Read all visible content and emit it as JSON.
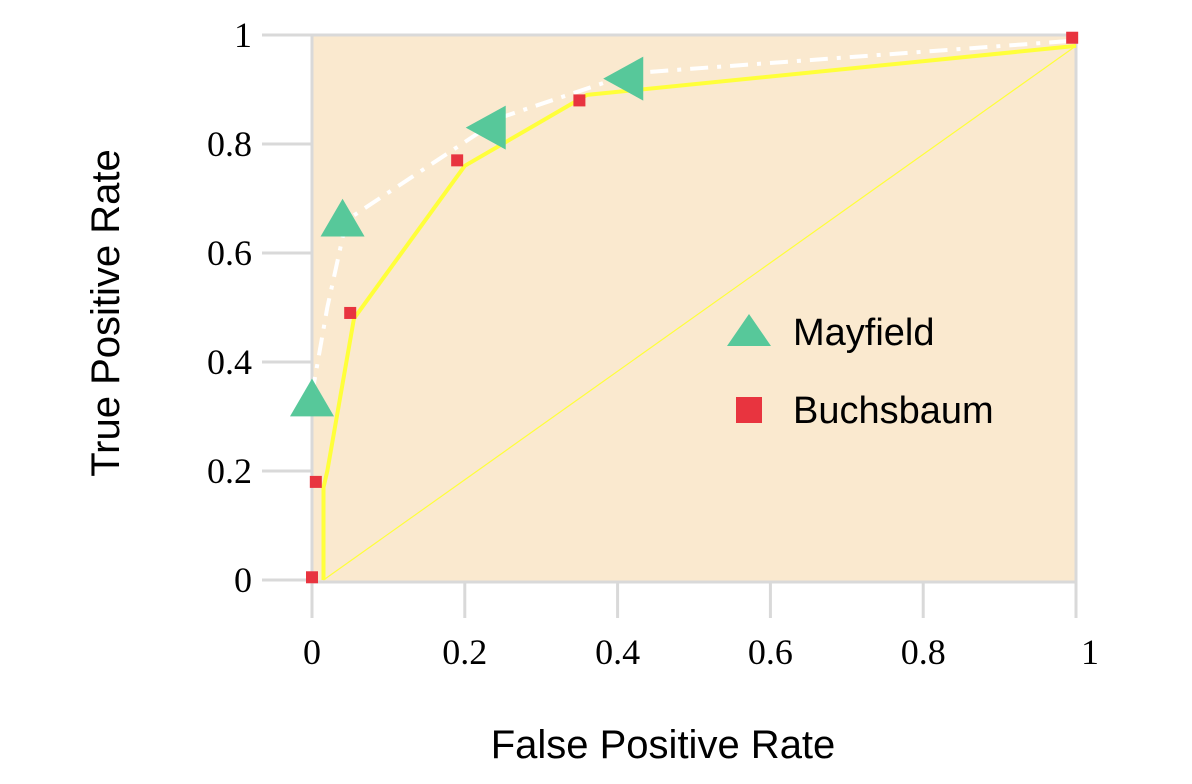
{
  "chart_data": {
    "type": "scatter",
    "xlabel": "False Positive Rate",
    "ylabel": "True Positive Rate",
    "xlim": [
      0,
      1
    ],
    "ylim": [
      0,
      1
    ],
    "x_ticks": [
      0,
      0.2,
      0.4,
      0.6,
      0.8,
      1
    ],
    "y_ticks": [
      0,
      0.2,
      0.4,
      0.6,
      0.8,
      1
    ],
    "x_tick_labels": [
      "0",
      "0.2",
      "0.4",
      "0.6",
      "0.8",
      "1"
    ],
    "y_tick_labels": [
      "0",
      "0.2",
      "0.4",
      "0.6",
      "0.8",
      "1"
    ],
    "grid": false,
    "legend_position": "center-right",
    "colors": {
      "plot_background": "#fae9cf",
      "tick_marks": "#d9d9d9",
      "mayfield": "#57c89a",
      "buchsbaum": "#e8343f",
      "solid_curve": "#ffff3a",
      "dashdot_curve": "#ffffff",
      "diagonal": "#ffff3a"
    },
    "series": [
      {
        "name": "Mayfield",
        "marker": "triangle",
        "x": [
          0.0,
          0.04,
          0.23,
          0.41
        ],
        "y": [
          0.33,
          0.66,
          0.83,
          0.92
        ]
      },
      {
        "name": "Buchsbaum",
        "marker": "square",
        "x": [
          0.0,
          0.005,
          0.05,
          0.19,
          0.35,
          0.995
        ],
        "y": [
          0.005,
          0.18,
          0.49,
          0.77,
          0.88,
          0.995
        ]
      }
    ],
    "curves": [
      {
        "style": "solid",
        "x": [
          0.015,
          0.015,
          0.02,
          0.055,
          0.2,
          0.36,
          1.0
        ],
        "y": [
          0.0,
          0.17,
          0.2,
          0.48,
          0.76,
          0.89,
          0.98
        ]
      },
      {
        "style": "dash-dot",
        "x": [
          0.0,
          0.02,
          0.045,
          0.25,
          0.42,
          1.0
        ],
        "y": [
          0.34,
          0.5,
          0.66,
          0.85,
          0.93,
          0.99
        ]
      },
      {
        "style": "thin-diagonal",
        "x": [
          0.015,
          1.0
        ],
        "y": [
          0.0,
          0.98
        ]
      }
    ]
  }
}
